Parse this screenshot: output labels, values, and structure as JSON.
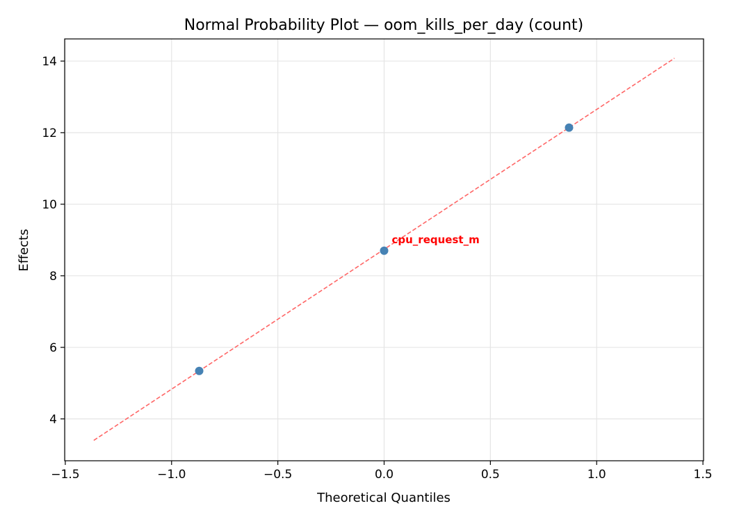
{
  "chart_data": {
    "type": "scatter",
    "title": "Normal Probability Plot — oom_kills_per_day (count)",
    "xlabel": "Theoretical Quantiles",
    "ylabel": "Effects",
    "xlim": [
      -1.503,
      1.503
    ],
    "ylim": [
      2.83,
      14.62
    ],
    "xticks": [
      -1.5,
      -1.0,
      -0.5,
      0.0,
      0.5,
      1.0,
      1.5
    ],
    "xtick_labels": [
      "−1.5",
      "−1.0",
      "−0.5",
      "0.0",
      "0.5",
      "1.0",
      "1.5"
    ],
    "yticks": [
      4,
      6,
      8,
      10,
      12,
      14
    ],
    "ytick_labels": [
      "4",
      "6",
      "8",
      "10",
      "12",
      "14"
    ],
    "grid": true,
    "points": [
      {
        "x": -0.87,
        "y": 5.34
      },
      {
        "x": 0.0,
        "y": 8.7
      },
      {
        "x": 0.87,
        "y": 12.14
      }
    ],
    "reference_line": {
      "x": [
        -1.366,
        1.366
      ],
      "y": [
        3.4,
        14.08
      ]
    },
    "annotations": [
      {
        "text": "cpu_request_m",
        "x": 0.0,
        "y": 8.7
      }
    ],
    "colors": {
      "points": "#4682b4",
      "line": "#ff6666",
      "annotation": "#ff0000",
      "grid": "#e5e5e5"
    }
  }
}
